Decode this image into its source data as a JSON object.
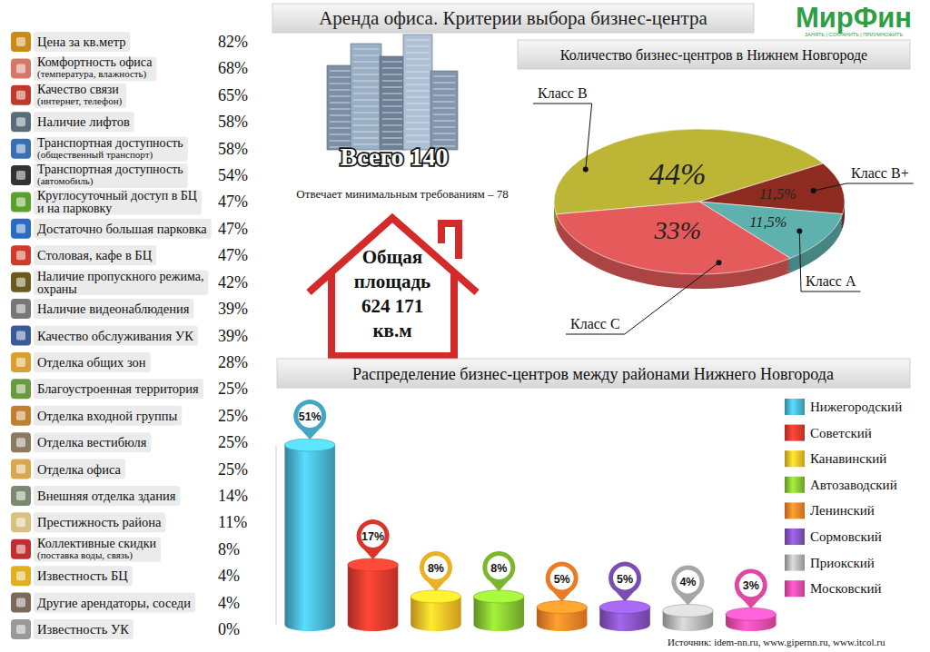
{
  "header": {
    "title": "Аренда офиса. Критерии выбора бизнес-центра",
    "logo": "МирФин",
    "tagline": "ЗАНЯТЬ | СОХРАНИТЬ | ПРИУМНОЖИТЬ"
  },
  "criteria": {
    "rows": [
      {
        "label": "Цена за кв.метр",
        "value": "82%"
      },
      {
        "label": "Комфортность офиса",
        "note": "(температура, влажность)",
        "value": "68%"
      },
      {
        "label": "Качество связи",
        "note": "(интернет, телефон)",
        "value": "65%"
      },
      {
        "label": "Наличие лифтов",
        "value": "58%"
      },
      {
        "label": "Транспортная доступность",
        "note": "(общественный транспорт)",
        "value": "58%"
      },
      {
        "label": "Транспортная доступность",
        "note": "(автомобиль)",
        "value": "54%"
      },
      {
        "label": "Круглосуточный доступ в БЦ",
        "label2": "и на парковку",
        "value": "47%"
      },
      {
        "label": "Достаточно большая парковка",
        "value": "47%"
      },
      {
        "label": "Столовая, кафе в БЦ",
        "value": "47%"
      },
      {
        "label": "Наличие пропускного режима,",
        "label2": "охраны",
        "value": "42%"
      },
      {
        "label": "Наличие видеонаблюдения",
        "value": "39%"
      },
      {
        "label": "Качество обслуживания УК",
        "value": "39%"
      },
      {
        "label": "Отделка общих зон",
        "value": "28%"
      },
      {
        "label": "Благоустроенная территория",
        "value": "25%"
      },
      {
        "label": "Отделка входной группы",
        "value": "25%"
      },
      {
        "label": "Отделка вестибюля",
        "value": "25%"
      },
      {
        "label": "Отделка офиса",
        "value": "25%"
      },
      {
        "label": "Внешняя отделка здания",
        "value": "14%"
      },
      {
        "label": "Престижность района",
        "value": "11%"
      },
      {
        "label": "Коллективные скидки",
        "note": "(поставка воды, связь)",
        "value": "8%"
      },
      {
        "label": "Известность БЦ",
        "value": "4%"
      },
      {
        "label": "Другие арендаторы, соседи",
        "value": "4%"
      },
      {
        "label": "Известность УК",
        "value": "0%"
      }
    ]
  },
  "summary": {
    "total": "Всего 140",
    "requirement": "Отвечает минимальным требованиям – 78",
    "area": [
      "Общая",
      "площадь",
      "624 171",
      "кв.м"
    ]
  },
  "source": "Источник: idem-nn.ru, www.gipernn.ru, www.itcol.ru",
  "chart_data": [
    {
      "type": "pie",
      "title": "Количество бизнес-центров в Нижнем Новгороде",
      "categories": [
        "Класс B",
        "Класс B+",
        "Класс A",
        "Класс C"
      ],
      "values": [
        44,
        11.5,
        11.5,
        33
      ],
      "value_labels": [
        "44%",
        "11,5%",
        "11,5%",
        "33%"
      ],
      "colors": [
        "#bdb535",
        "#8e2b20",
        "#5fb1ad",
        "#e55a5a"
      ],
      "data_labels": true
    },
    {
      "type": "bar",
      "title": "Распределение бизнес-центров между районами Нижнего Новгорода",
      "categories": [
        "Нижегородский",
        "Советский",
        "Канавинский",
        "Автозаводский",
        "Ленинский",
        "Сормовский",
        "Приокский",
        "Московский"
      ],
      "values": [
        51,
        17,
        8,
        8,
        5,
        5,
        4,
        3
      ],
      "value_labels": [
        "51%",
        "17%",
        "8%",
        "8%",
        "5%",
        "5%",
        "4%",
        "3%"
      ],
      "colors": [
        "#43a7c4",
        "#d8362a",
        "#eab123",
        "#7bb62d",
        "#ea7a23",
        "#7b4db3",
        "#a6a6a6",
        "#e0479e"
      ],
      "ylim": [
        0,
        51
      ],
      "data_labels": true,
      "tick_labels": false,
      "legend": "right"
    }
  ]
}
